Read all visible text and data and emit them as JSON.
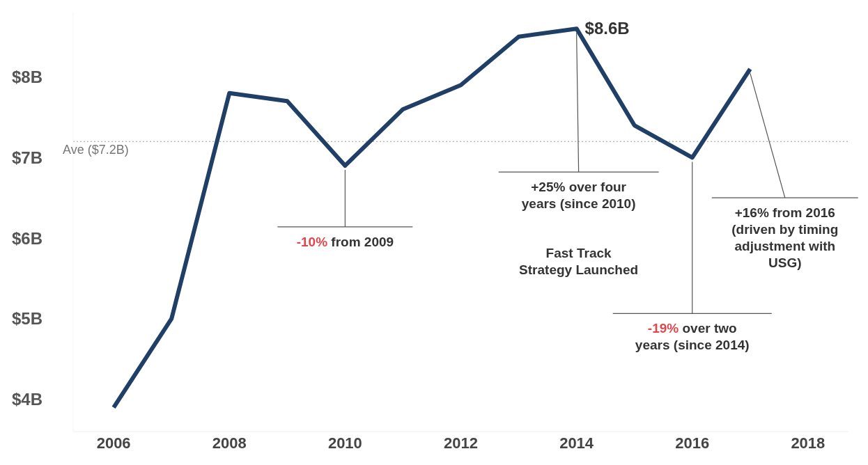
{
  "chart_data": {
    "type": "line",
    "x": [
      2006,
      2007,
      2008,
      2009,
      2010,
      2011,
      2012,
      2013,
      2014,
      2015,
      2016,
      2017
    ],
    "series": [
      {
        "color": "#1f3f66",
        "values": [
          3.9,
          5.0,
          7.8,
          7.7,
          6.9,
          7.6,
          7.9,
          8.5,
          8.6,
          7.4,
          7.0,
          8.1
        ]
      }
    ],
    "xlim": [
      2005.3,
      2018.7
    ],
    "xticks": [
      2006,
      2008,
      2010,
      2012,
      2014,
      2016,
      2018
    ],
    "ylim": [
      3.6,
      8.8
    ],
    "yticks": [
      {
        "value": 4,
        "label": "$4B"
      },
      {
        "value": 5,
        "label": "$5B"
      },
      {
        "value": 6,
        "label": "$6B"
      },
      {
        "value": 7,
        "label": "$7B"
      },
      {
        "value": 8,
        "label": "$8B"
      }
    ],
    "grid": false,
    "legend": false,
    "marker": "none",
    "line_style": "solid",
    "ref_lines": [
      {
        "axis": "y",
        "value": 7.2,
        "label": "Ave ($7.2B)",
        "color": "#999999",
        "line_style": "dotted"
      }
    ],
    "annotations": [
      {
        "text": "$8.6B",
        "x": 2014,
        "y": 8.6
      },
      {
        "text": "-10% from 2009",
        "x": 2010,
        "y": 6.9
      },
      {
        "text": "+25% over four\nyears (since 2010)",
        "x": 2014,
        "y": 8.6
      },
      "Fast Track\nStrategy Launched",
      {
        "text": "-19% over two\nyears (since 2014)",
        "x": 2016,
        "y": 7.0
      },
      {
        "text": "+16% from 2016\n(driven by timing\nadjustment with\nUSG)",
        "x": 2017,
        "y": 8.1
      }
    ]
  }
}
